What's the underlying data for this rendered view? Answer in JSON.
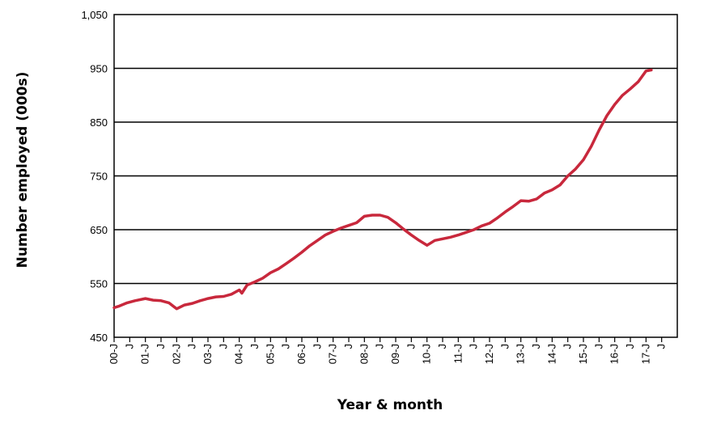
{
  "chart_data": {
    "type": "line",
    "title": "",
    "xlabel": "Year & month",
    "ylabel": "Number employed (000s)",
    "ylim": [
      450,
      1050
    ],
    "yticks": [
      "450",
      "550",
      "650",
      "750",
      "850",
      "950",
      "1,050"
    ],
    "ytick_values": [
      450,
      550,
      650,
      750,
      850,
      950,
      1050
    ],
    "x_start": "2000-01",
    "x_end": "2017-12",
    "xtick_labels": [
      "00-J",
      "J",
      "01-J",
      "J",
      "02-J",
      "J",
      "03-J",
      "J",
      "04-J",
      "J",
      "05-J",
      "J",
      "06-J",
      "J",
      "07-J",
      "J",
      "08-J",
      "J",
      "09-J",
      "J",
      "10-J",
      "J",
      "11-J",
      "J",
      "12-J",
      "J",
      "13-J",
      "J",
      "14-J",
      "J",
      "15-J",
      "J",
      "16-J",
      "J",
      "17-J",
      "J"
    ],
    "grid": "horizontal",
    "line_color": "#c8283c",
    "series": [
      {
        "points": [
          [
            "2000-01",
            505
          ],
          [
            "2000-03",
            508
          ],
          [
            "2000-06",
            514
          ],
          [
            "2000-09",
            518
          ],
          [
            "2001-01",
            522
          ],
          [
            "2001-04",
            519
          ],
          [
            "2001-07",
            518
          ],
          [
            "2001-10",
            514
          ],
          [
            "2002-01",
            503
          ],
          [
            "2002-04",
            510
          ],
          [
            "2002-07",
            513
          ],
          [
            "2002-10",
            518
          ],
          [
            "2003-01",
            522
          ],
          [
            "2003-04",
            525
          ],
          [
            "2003-07",
            526
          ],
          [
            "2003-10",
            530
          ],
          [
            "2004-01",
            538
          ],
          [
            "2004-02",
            532
          ],
          [
            "2004-04",
            547
          ],
          [
            "2004-07",
            553
          ],
          [
            "2004-10",
            560
          ],
          [
            "2005-01",
            570
          ],
          [
            "2005-04",
            577
          ],
          [
            "2005-07",
            587
          ],
          [
            "2005-10",
            597
          ],
          [
            "2006-01",
            608
          ],
          [
            "2006-04",
            620
          ],
          [
            "2006-07",
            630
          ],
          [
            "2006-10",
            640
          ],
          [
            "2007-01",
            647
          ],
          [
            "2007-04",
            653
          ],
          [
            "2007-07",
            658
          ],
          [
            "2007-10",
            663
          ],
          [
            "2008-01",
            675
          ],
          [
            "2008-04",
            677
          ],
          [
            "2008-07",
            677
          ],
          [
            "2008-10",
            673
          ],
          [
            "2009-01",
            663
          ],
          [
            "2009-04",
            651
          ],
          [
            "2009-07",
            640
          ],
          [
            "2009-10",
            630
          ],
          [
            "2010-01",
            621
          ],
          [
            "2010-04",
            630
          ],
          [
            "2010-07",
            633
          ],
          [
            "2010-10",
            636
          ],
          [
            "2011-01",
            640
          ],
          [
            "2011-04",
            645
          ],
          [
            "2011-07",
            650
          ],
          [
            "2011-10",
            657
          ],
          [
            "2012-01",
            662
          ],
          [
            "2012-04",
            672
          ],
          [
            "2012-07",
            683
          ],
          [
            "2012-10",
            693
          ],
          [
            "2013-01",
            704
          ],
          [
            "2013-04",
            703
          ],
          [
            "2013-07",
            707
          ],
          [
            "2013-10",
            718
          ],
          [
            "2014-01",
            724
          ],
          [
            "2014-04",
            733
          ],
          [
            "2014-07",
            750
          ],
          [
            "2014-10",
            763
          ],
          [
            "2015-01",
            780
          ],
          [
            "2015-04",
            805
          ],
          [
            "2015-07",
            835
          ],
          [
            "2015-10",
            862
          ],
          [
            "2016-01",
            883
          ],
          [
            "2016-04",
            900
          ],
          [
            "2016-07",
            912
          ],
          [
            "2016-10",
            925
          ],
          [
            "2017-01",
            945
          ],
          [
            "2017-03",
            947
          ]
        ]
      }
    ]
  }
}
